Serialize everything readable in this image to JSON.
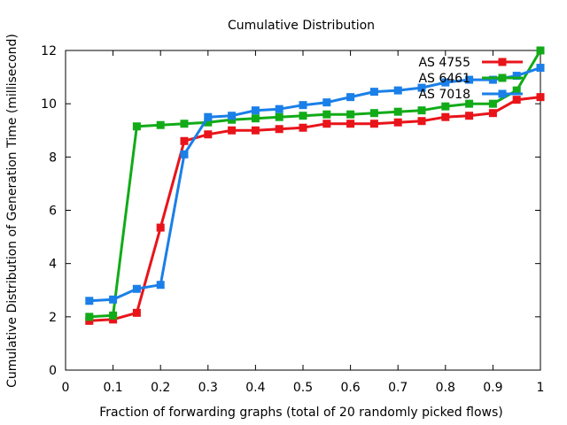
{
  "chart_data": {
    "type": "line",
    "title": "Cumulative Distribution",
    "xlabel": "Fraction of forwarding graphs (total of 20 randomly picked flows)",
    "ylabel": "Cumulative Distribution of Generation Time (millisecond)",
    "xlim": [
      0,
      1
    ],
    "ylim": [
      0,
      12
    ],
    "xticks": [
      "0",
      "0.1",
      "0.2",
      "0.3",
      "0.4",
      "0.5",
      "0.6",
      "0.7",
      "0.8",
      "0.9",
      "1"
    ],
    "yticks": [
      "0",
      "2",
      "4",
      "6",
      "8",
      "10",
      "12"
    ],
    "grid": false,
    "legend_position": "top-right",
    "x": [
      0.05,
      0.1,
      0.15,
      0.2,
      0.25,
      0.3,
      0.35,
      0.4,
      0.45,
      0.5,
      0.55,
      0.6,
      0.65,
      0.7,
      0.75,
      0.8,
      0.85,
      0.9,
      0.95,
      1.0
    ],
    "series": [
      {
        "name": "AS 4755",
        "color": "#e8141a",
        "values": [
          1.85,
          1.9,
          2.15,
          5.35,
          8.6,
          8.85,
          9.0,
          9.0,
          9.05,
          9.1,
          9.25,
          9.25,
          9.25,
          9.3,
          9.35,
          9.5,
          9.55,
          9.65,
          10.15,
          10.25
        ]
      },
      {
        "name": "AS 6461",
        "color": "#12ab18",
        "values": [
          2.0,
          2.05,
          9.15,
          9.2,
          9.25,
          9.3,
          9.4,
          9.45,
          9.5,
          9.55,
          9.6,
          9.6,
          9.65,
          9.7,
          9.75,
          9.9,
          10.0,
          10.0,
          10.5,
          12.0
        ]
      },
      {
        "name": "AS 7018",
        "color": "#1a7fe8",
        "values": [
          2.6,
          2.65,
          3.05,
          3.2,
          8.1,
          9.5,
          9.55,
          9.75,
          9.8,
          9.95,
          10.05,
          10.25,
          10.45,
          10.5,
          10.6,
          10.8,
          10.9,
          10.9,
          11.05,
          11.35
        ]
      }
    ]
  }
}
